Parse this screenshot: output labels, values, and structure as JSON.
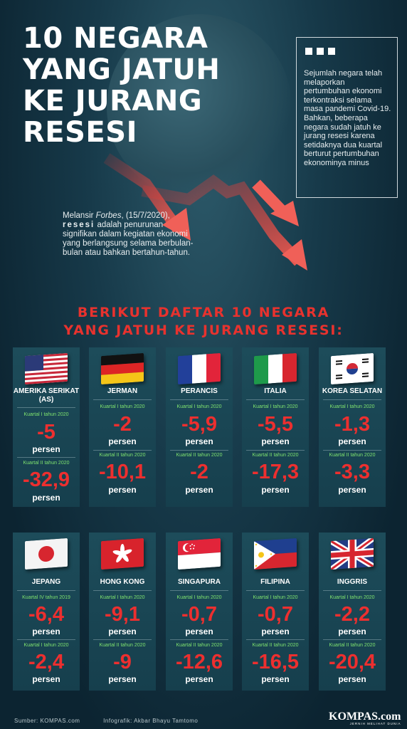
{
  "title": [
    "10 NEGARA",
    "YANG JATUH",
    "KE JURANG",
    "RESESI"
  ],
  "infobox": {
    "text": "Sejumlah negara telah melaporkan pertumbuhan ekonomi terkontraksi selama masa pandemi Covid-19. Bahkan, beberapa negara sudah jatuh ke jurang resesi karena setidaknya dua kuartal berturut pertumbuhan ekonominya minus"
  },
  "melansir": {
    "before": "Melansir ",
    "source": "Forbes",
    "date": ", (15/7/2020), ",
    "term": "resesi",
    "after": " adalah penurunan signifikan dalam kegiatan ekonomi yang berlangsung selama berbulan-bulan atau bahkan bertahun-tahun."
  },
  "heading": [
    "BERIKUT DAFTAR 10 NEGARA",
    "YANG JATUH KE JURANG RESESI:"
  ],
  "unit": "persen",
  "countries": [
    {
      "name": "AMERIKA SERIKAT (AS)",
      "flag": "us-flag",
      "p1": "Kuartal I tahun 2020",
      "v1": "-5",
      "p2": "Kuartal II tahun 2020",
      "v2": "-32,9"
    },
    {
      "name": "JERMAN",
      "flag": "germany-flag",
      "p1": "Kuartal I tahun 2020",
      "v1": "-2",
      "p2": "Kuartal II tahun 2020",
      "v2": "-10,1"
    },
    {
      "name": "PERANCIS",
      "flag": "france-flag",
      "p1": "Kuartal I tahun 2020",
      "v1": "-5,9",
      "p2": "Kuartal II tahun 2020",
      "v2": "-2"
    },
    {
      "name": "ITALIA",
      "flag": "italy-flag",
      "p1": "Kuartal I tahun 2020",
      "v1": "-5,5",
      "p2": "Kuartal II tahun 2020",
      "v2": "-17,3"
    },
    {
      "name": "KOREA SELATAN",
      "flag": "korea-flag",
      "p1": "Kuartal I tahun 2020",
      "v1": "-1,3",
      "p2": "Kuartal II tahun 2020",
      "v2": "-3,3"
    },
    {
      "name": "JEPANG",
      "flag": "japan-flag",
      "p1": "Kuartal IV tahun 2019",
      "v1": "-6,4",
      "p2": "Kuartal I tahun 2020",
      "v2": "-2,4"
    },
    {
      "name": "HONG KONG",
      "flag": "hongkong-flag",
      "p1": "Kuartal I tahun 2020",
      "v1": "-9,1",
      "p2": "Kuartal II tahun 2020",
      "v2": "-9"
    },
    {
      "name": "SINGAPURA",
      "flag": "singapore-flag",
      "p1": "Kuartal I tahun 2020",
      "v1": "-0,7",
      "p2": "Kuartal II tahun 2020",
      "v2": "-12,6"
    },
    {
      "name": "FILIPINA",
      "flag": "philippines-flag",
      "p1": "Kuartal I tahun 2020",
      "v1": "-0,7",
      "p2": "Kuartal II tahun 2020",
      "v2": "-16,5"
    },
    {
      "name": "INGGRIS",
      "flag": "uk-flag",
      "p1": "Kuartal I tahun 2020",
      "v1": "-2,2",
      "p2": "Kuartal II tahun 2020",
      "v2": "-20,4"
    }
  ],
  "footer": {
    "source": "Sumber: KOMPAS.com",
    "graphic": "Infografik: Akbar Bhayu Tamtomo"
  },
  "logo": {
    "name": "KOMPAS.com",
    "tagline": "JERNIH MELIHAT DUNIA"
  },
  "colors": {
    "accent_red": "#e8322e",
    "period_green": "#7fe36f",
    "background": "#0f2c3a"
  }
}
